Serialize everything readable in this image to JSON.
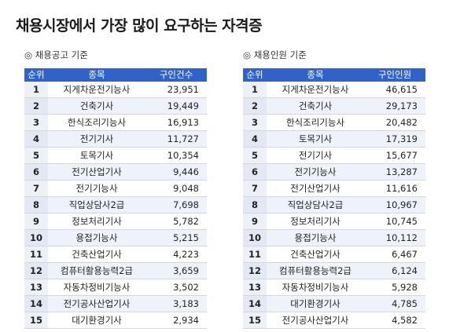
{
  "title": "채용시장에서 가장 많이 요구하는 자격증",
  "left": {
    "subtitle": "◎ 채용공고 기준",
    "headers": [
      "순위",
      "종목",
      "구인건수"
    ],
    "rows": [
      {
        "rank": "1",
        "name": "지게차운전기능사",
        "count": "23,951"
      },
      {
        "rank": "2",
        "name": "건축기사",
        "count": "19,449"
      },
      {
        "rank": "3",
        "name": "한식조리기능사",
        "count": "16,913"
      },
      {
        "rank": "4",
        "name": "전기기사",
        "count": "11,727"
      },
      {
        "rank": "5",
        "name": "토목기사",
        "count": "10,354"
      },
      {
        "rank": "6",
        "name": "전기산업기사",
        "count": "9,446"
      },
      {
        "rank": "7",
        "name": "전기기능사",
        "count": "9,048"
      },
      {
        "rank": "8",
        "name": "직업상담사2급",
        "count": "7,698"
      },
      {
        "rank": "9",
        "name": "정보처리기사",
        "count": "5,782"
      },
      {
        "rank": "10",
        "name": "용접기능사",
        "count": "5,215"
      },
      {
        "rank": "11",
        "name": "건축산업기사",
        "count": "4,223"
      },
      {
        "rank": "12",
        "name": "컴퓨터활용능력2급",
        "count": "3,659"
      },
      {
        "rank": "13",
        "name": "자동차정비기능사",
        "count": "3,502"
      },
      {
        "rank": "14",
        "name": "전기공사산업기사",
        "count": "3,183"
      },
      {
        "rank": "15",
        "name": "대기환경기사",
        "count": "2,934"
      }
    ]
  },
  "right": {
    "subtitle": "◎ 채용인원 기준",
    "headers": [
      "순위",
      "종목",
      "구인인원"
    ],
    "rows": [
      {
        "rank": "1",
        "name": "지게차운전기능사",
        "count": "46,615"
      },
      {
        "rank": "2",
        "name": "건축기사",
        "count": "29,173"
      },
      {
        "rank": "3",
        "name": "한식조리기능사",
        "count": "20,482"
      },
      {
        "rank": "4",
        "name": "토목기사",
        "count": "17,319"
      },
      {
        "rank": "5",
        "name": "전기기사",
        "count": "15,677"
      },
      {
        "rank": "6",
        "name": "전기기능사",
        "count": "13,287"
      },
      {
        "rank": "7",
        "name": "전기산업기사",
        "count": "11,616"
      },
      {
        "rank": "8",
        "name": "직업상담사2급",
        "count": "10,967"
      },
      {
        "rank": "9",
        "name": "정보처리기사",
        "count": "10,745"
      },
      {
        "rank": "10",
        "name": "용접기능사",
        "count": "10,112"
      },
      {
        "rank": "11",
        "name": "건축산업기사",
        "count": "6,467"
      },
      {
        "rank": "12",
        "name": "컴퓨터활용능력2급",
        "count": "6,124"
      },
      {
        "rank": "13",
        "name": "자동차정비기능사",
        "count": "5,928"
      },
      {
        "rank": "14",
        "name": "대기환경기사",
        "count": "4,785"
      },
      {
        "rank": "15",
        "name": "전기공사산업기사",
        "count": "4,582"
      }
    ]
  }
}
